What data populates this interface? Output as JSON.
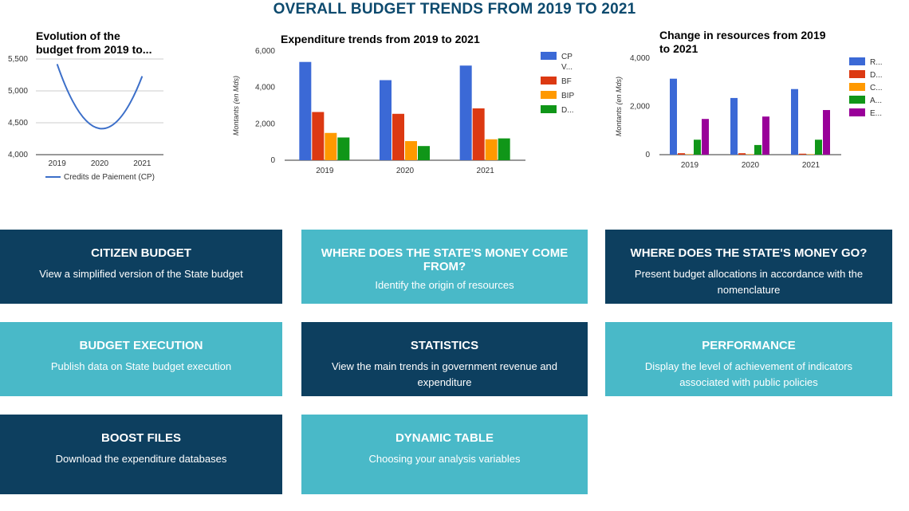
{
  "page": {
    "title": "OVERALL BUDGET TRENDS FROM 2019 TO 2021"
  },
  "chart_data": [
    {
      "type": "line",
      "title": "Evolution of the budget from 2019 to...",
      "title_lines": [
        "Evolution of the",
        "budget from 2019 to..."
      ],
      "x": [
        "2019",
        "2020",
        "2021"
      ],
      "series": [
        {
          "name": "Credits de Paiement (CP)",
          "values": [
            5420,
            4410,
            5230
          ],
          "color": "#3c6fc9"
        }
      ],
      "y_ticks": [
        "4,000",
        "4,500",
        "5,000",
        "5,500"
      ],
      "ylim": [
        4000,
        5500
      ],
      "xlabel": "",
      "ylabel": "",
      "grid": true,
      "legend": "bottom"
    },
    {
      "type": "bar",
      "title": "Expenditure trends from 2019 to 2021",
      "categories": [
        "2019",
        "2020",
        "2021"
      ],
      "series": [
        {
          "name": "CP",
          "name_line2": "V...",
          "values": [
            5400,
            4400,
            5200
          ],
          "color": "#3b69d6"
        },
        {
          "name": "BF",
          "values": [
            2650,
            2550,
            2850
          ],
          "color": "#dc3912"
        },
        {
          "name": "BIP",
          "values": [
            1500,
            1050,
            1150
          ],
          "color": "#ff9900"
        },
        {
          "name": "D...",
          "values": [
            1250,
            780,
            1200
          ],
          "color": "#109618"
        }
      ],
      "y_ticks": [
        "0",
        "2,000",
        "4,000",
        "6,000"
      ],
      "ylim": [
        0,
        6000
      ],
      "xlabel": "",
      "ylabel": "Montants (en Mds)",
      "grid": false,
      "legend": "right"
    },
    {
      "type": "bar",
      "title": "Change in resources from 2019 to 2021",
      "title_lines": [
        "Change in resources from 2019",
        "to 2021"
      ],
      "categories": [
        "2019",
        "2020",
        "2021"
      ],
      "series": [
        {
          "name": "R...",
          "values": [
            3150,
            2350,
            2720
          ],
          "color": "#3b69d6"
        },
        {
          "name": "D...",
          "values": [
            60,
            60,
            40
          ],
          "color": "#dc3912"
        },
        {
          "name": "C...",
          "values": [
            20,
            20,
            20
          ],
          "color": "#ff9900"
        },
        {
          "name": "A...",
          "values": [
            620,
            400,
            620
          ],
          "color": "#109618"
        },
        {
          "name": "E...",
          "values": [
            1480,
            1580,
            1850
          ],
          "color": "#990099"
        }
      ],
      "y_ticks": [
        "0",
        "2,000",
        "4,000"
      ],
      "ylim": [
        0,
        4000
      ],
      "xlabel": "",
      "ylabel": "Montants (en Mds)",
      "grid": false,
      "legend": "right"
    }
  ],
  "tiles": [
    {
      "title": "CITIZEN BUDGET",
      "description": "View a simplified version of the State budget",
      "theme": "dark"
    },
    {
      "title": "WHERE DOES THE STATE'S MONEY COME FROM?",
      "description": "Identify the origin of resources",
      "theme": "light"
    },
    {
      "title": "WHERE DOES THE STATE'S MONEY GO?",
      "description": "Present budget allocations in accordance with the nomenclature",
      "theme": "dark"
    },
    {
      "title": "BUDGET EXECUTION",
      "description": "Publish data on State budget execution",
      "theme": "light"
    },
    {
      "title": "STATISTICS",
      "description": "View the main trends in government revenue and expenditure",
      "theme": "dark"
    },
    {
      "title": "PERFORMANCE",
      "description": "Display the level of achievement of indicators associated with public policies",
      "theme": "light"
    },
    {
      "title": "BOOST FILES",
      "description": "Download the expenditure databases",
      "theme": "dark"
    },
    {
      "title": "DYNAMIC TABLE",
      "description": "Choosing your analysis variables",
      "theme": "light"
    }
  ]
}
